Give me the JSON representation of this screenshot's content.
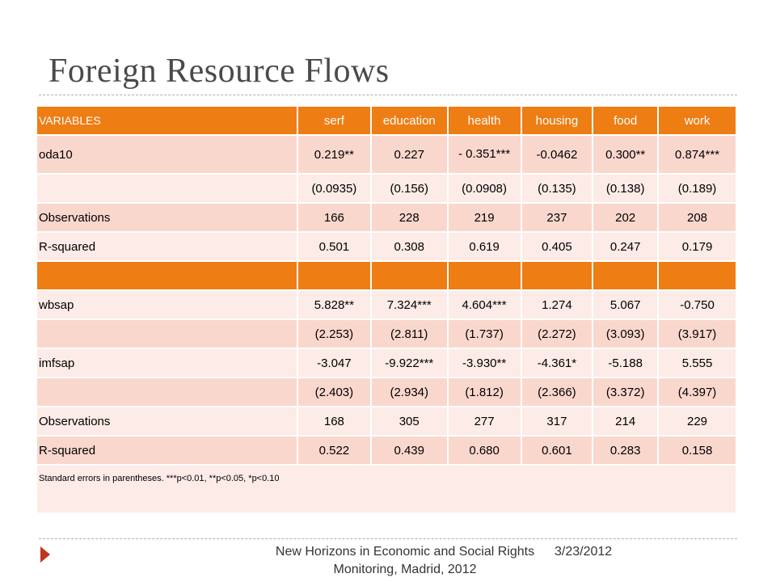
{
  "slide": {
    "title": "Foreign Resource Flows",
    "footer_text": "New Horizons in Economic and Social Rights Monitoring, Madrid, 2012",
    "footer_date": "3/23/2012"
  },
  "table": {
    "headers": [
      "VARIABLES",
      "serf",
      "education",
      "health",
      "housing",
      "food",
      "work"
    ],
    "rows": [
      [
        "oda10",
        "0.219**",
        "0.227",
        "- 0.351***",
        "-0.0462",
        "0.300**",
        "0.874***"
      ],
      [
        "",
        "(0.0935)",
        "(0.156)",
        "(0.0908)",
        "(0.135)",
        "(0.138)",
        "(0.189)"
      ],
      [
        "Observations",
        "166",
        "228",
        "219",
        "237",
        "202",
        "208"
      ],
      [
        "R-squared",
        "0.501",
        "0.308",
        "0.619",
        "0.405",
        "0.247",
        "0.179"
      ],
      [
        "",
        "",
        "",
        "",
        "",
        "",
        ""
      ],
      [
        "wbsap",
        "5.828**",
        "7.324***",
        "4.604***",
        "1.274",
        "5.067",
        "-0.750"
      ],
      [
        "",
        "(2.253)",
        "(2.811)",
        "(1.737)",
        "(2.272)",
        "(3.093)",
        "(3.917)"
      ],
      [
        "imfsap",
        "-3.047",
        "-9.922***",
        "-3.930**",
        "-4.361*",
        "-5.188",
        "5.555"
      ],
      [
        "",
        "(2.403)",
        "(2.934)",
        "(1.812)",
        "(2.366)",
        "(3.372)",
        "(4.397)"
      ],
      [
        "Observations",
        "168",
        "305",
        "277",
        "317",
        "214",
        "229"
      ],
      [
        "R-squared",
        "0.522",
        "0.439",
        "0.680",
        "0.601",
        "0.283",
        "0.158"
      ]
    ],
    "note": "Standard errors in parentheses. ***p<0.01, **p<0.05, *p<0.10"
  }
}
